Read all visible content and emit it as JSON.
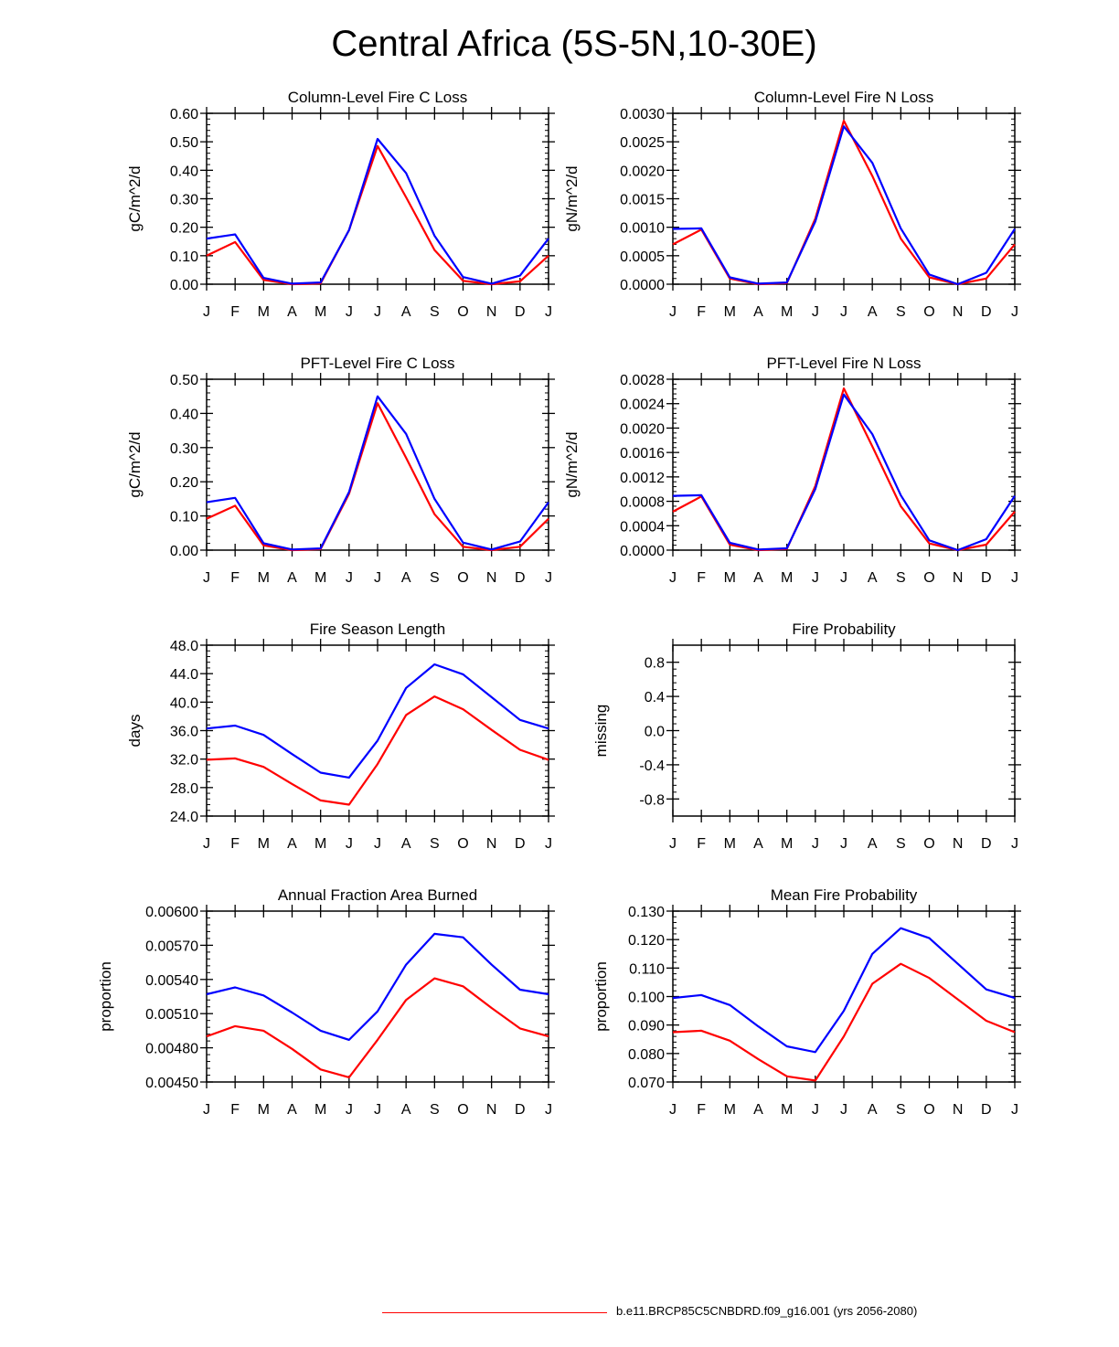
{
  "title": "Central Africa (5S-5N,10-30E)",
  "colors": {
    "series_red": "#ff0000",
    "series_blue": "#0000ff",
    "axis": "#000000"
  },
  "legend": {
    "label": "b.e11.BRCP85C5CNBDRD.f09_g16.001 (yrs 2056-2080)",
    "color": "#ff0000"
  },
  "chart_data": [
    {
      "type": "line",
      "title": "Column-Level Fire C Loss",
      "ylabel": "gC/m^2/d",
      "categories": [
        "J",
        "F",
        "M",
        "A",
        "M",
        "J",
        "J",
        "A",
        "S",
        "O",
        "N",
        "D",
        "J"
      ],
      "ylim": [
        0,
        0.6
      ],
      "yticks": [
        0,
        0.1,
        0.2,
        0.3,
        0.4,
        0.5,
        0.6
      ],
      "ytick_labels": [
        "0.00",
        "0.10",
        "0.20",
        "0.30",
        "0.40",
        "0.50",
        "0.60"
      ],
      "series": [
        {
          "name": "red",
          "color": "#ff0000",
          "values": [
            0.1,
            0.148,
            0.015,
            0.0,
            0.003,
            0.19,
            0.485,
            0.305,
            0.12,
            0.012,
            0.0,
            0.01,
            0.1
          ]
        },
        {
          "name": "blue",
          "color": "#0000ff",
          "values": [
            0.16,
            0.175,
            0.022,
            0.002,
            0.006,
            0.19,
            0.51,
            0.39,
            0.17,
            0.025,
            0.002,
            0.03,
            0.16
          ]
        }
      ]
    },
    {
      "type": "line",
      "title": "Column-Level Fire N Loss",
      "ylabel": "gN/m^2/d",
      "categories": [
        "J",
        "F",
        "M",
        "A",
        "M",
        "J",
        "J",
        "A",
        "S",
        "O",
        "N",
        "D",
        "J"
      ],
      "ylim": [
        0,
        0.003
      ],
      "yticks": [
        0,
        0.0005,
        0.001,
        0.0015,
        0.002,
        0.0025,
        0.003
      ],
      "ytick_labels": [
        "0.0000",
        "0.0005",
        "0.0010",
        "0.0015",
        "0.0020",
        "0.0025",
        "0.0030"
      ],
      "series": [
        {
          "name": "red",
          "color": "#ff0000",
          "values": [
            0.0007,
            0.00096,
            0.0001,
            0.0,
            2e-05,
            0.00115,
            0.00287,
            0.0019,
            0.0008,
            0.00012,
            0.0,
            0.0001,
            0.0007
          ]
        },
        {
          "name": "blue",
          "color": "#0000ff",
          "values": [
            0.00097,
            0.00098,
            0.00012,
            1e-05,
            3e-05,
            0.0011,
            0.00277,
            0.00213,
            0.00098,
            0.00017,
            0.0,
            0.0002,
            0.00097
          ]
        }
      ]
    },
    {
      "type": "line",
      "title": "PFT-Level Fire C Loss",
      "ylabel": "gC/m^2/d",
      "categories": [
        "J",
        "F",
        "M",
        "A",
        "M",
        "J",
        "J",
        "A",
        "S",
        "O",
        "N",
        "D",
        "J"
      ],
      "ylim": [
        0,
        0.5
      ],
      "yticks": [
        0,
        0.1,
        0.2,
        0.3,
        0.4,
        0.5
      ],
      "ytick_labels": [
        "0.00",
        "0.10",
        "0.20",
        "0.30",
        "0.40",
        "0.50"
      ],
      "series": [
        {
          "name": "red",
          "color": "#ff0000",
          "values": [
            0.092,
            0.13,
            0.014,
            0.0,
            0.003,
            0.165,
            0.43,
            0.27,
            0.105,
            0.01,
            0.0,
            0.01,
            0.092
          ]
        },
        {
          "name": "blue",
          "color": "#0000ff",
          "values": [
            0.14,
            0.153,
            0.02,
            0.002,
            0.005,
            0.17,
            0.45,
            0.34,
            0.15,
            0.022,
            0.002,
            0.025,
            0.14
          ]
        }
      ]
    },
    {
      "type": "line",
      "title": "PFT-Level Fire N Loss",
      "ylabel": "gN/m^2/d",
      "categories": [
        "J",
        "F",
        "M",
        "A",
        "M",
        "J",
        "J",
        "A",
        "S",
        "O",
        "N",
        "D",
        "J"
      ],
      "ylim": [
        0,
        0.0028
      ],
      "yticks": [
        0,
        0.0004,
        0.0008,
        0.0012,
        0.0016,
        0.002,
        0.0024,
        0.0028
      ],
      "ytick_labels": [
        "0.0000",
        "0.0004",
        "0.0008",
        "0.0012",
        "0.0016",
        "0.0020",
        "0.0024",
        "0.0028"
      ],
      "series": [
        {
          "name": "red",
          "color": "#ff0000",
          "values": [
            0.00063,
            0.00088,
            9e-05,
            0.0,
            2e-05,
            0.00105,
            0.00265,
            0.0017,
            0.00072,
            0.00011,
            0.0,
            9e-05,
            0.00063
          ]
        },
        {
          "name": "blue",
          "color": "#0000ff",
          "values": [
            0.00089,
            0.0009,
            0.00012,
            1e-05,
            3e-05,
            0.001,
            0.00255,
            0.0019,
            0.0009,
            0.00016,
            0.0,
            0.00018,
            0.00089
          ]
        }
      ]
    },
    {
      "type": "line",
      "title": "Fire Season Length",
      "ylabel": "days",
      "categories": [
        "J",
        "F",
        "M",
        "A",
        "M",
        "J",
        "J",
        "A",
        "S",
        "O",
        "N",
        "D",
        "J"
      ],
      "ylim": [
        24,
        48
      ],
      "yticks": [
        24,
        28,
        32,
        36,
        40,
        44,
        48
      ],
      "ytick_labels": [
        "24.0",
        "28.0",
        "32.0",
        "36.0",
        "40.0",
        "44.0",
        "48.0"
      ],
      "series": [
        {
          "name": "red",
          "color": "#ff0000",
          "values": [
            31.9,
            32.1,
            30.9,
            28.5,
            26.2,
            25.6,
            31.3,
            38.2,
            40.8,
            39.0,
            36.1,
            33.3,
            31.9
          ]
        },
        {
          "name": "blue",
          "color": "#0000ff",
          "values": [
            36.3,
            36.7,
            35.4,
            32.7,
            30.1,
            29.4,
            34.6,
            42.0,
            45.3,
            43.9,
            40.7,
            37.5,
            36.3
          ]
        }
      ]
    },
    {
      "type": "line",
      "title": "Fire Probability",
      "ylabel": "missing",
      "categories": [
        "J",
        "F",
        "M",
        "A",
        "M",
        "J",
        "J",
        "A",
        "S",
        "O",
        "N",
        "D",
        "J"
      ],
      "ylim": [
        -1,
        1
      ],
      "yticks": [
        -0.8,
        -0.4,
        0,
        0.4,
        0.8
      ],
      "ytick_labels": [
        "-0.8",
        "-0.4",
        "0.0",
        "0.4",
        "0.8"
      ],
      "series": []
    },
    {
      "type": "line",
      "title": "Annual Fraction Area Burned",
      "ylabel": "proportion",
      "categories": [
        "J",
        "F",
        "M",
        "A",
        "M",
        "J",
        "J",
        "A",
        "S",
        "O",
        "N",
        "D",
        "J"
      ],
      "ylim": [
        0.0045,
        0.006
      ],
      "yticks": [
        0.0045,
        0.0048,
        0.0051,
        0.0054,
        0.0057,
        0.006
      ],
      "ytick_labels": [
        "0.00450",
        "0.00480",
        "0.00510",
        "0.00540",
        "0.00570",
        "0.00600"
      ],
      "series": [
        {
          "name": "red",
          "color": "#ff0000",
          "values": [
            0.0049,
            0.00499,
            0.00495,
            0.00479,
            0.00461,
            0.00454,
            0.00487,
            0.00522,
            0.00541,
            0.00534,
            0.00515,
            0.00497,
            0.0049
          ]
        },
        {
          "name": "blue",
          "color": "#0000ff",
          "values": [
            0.00527,
            0.00533,
            0.00526,
            0.00511,
            0.00495,
            0.00487,
            0.00512,
            0.00553,
            0.0058,
            0.00577,
            0.00553,
            0.00531,
            0.00527
          ]
        }
      ]
    },
    {
      "type": "line",
      "title": "Mean Fire Probability",
      "ylabel": "proportion",
      "categories": [
        "J",
        "F",
        "M",
        "A",
        "M",
        "J",
        "J",
        "A",
        "S",
        "O",
        "N",
        "D",
        "J"
      ],
      "ylim": [
        0.07,
        0.13
      ],
      "yticks": [
        0.07,
        0.08,
        0.09,
        0.1,
        0.11,
        0.12,
        0.13
      ],
      "ytick_labels": [
        "0.070",
        "0.080",
        "0.090",
        "0.100",
        "0.110",
        "0.120",
        "0.130"
      ],
      "series": [
        {
          "name": "red",
          "color": "#ff0000",
          "values": [
            0.0875,
            0.088,
            0.0845,
            0.078,
            0.072,
            0.0705,
            0.086,
            0.1045,
            0.1115,
            0.1065,
            0.099,
            0.0915,
            0.0875
          ]
        },
        {
          "name": "blue",
          "color": "#0000ff",
          "values": [
            0.0995,
            0.1005,
            0.097,
            0.0895,
            0.0825,
            0.0805,
            0.095,
            0.115,
            0.124,
            0.1205,
            0.1115,
            0.1025,
            0.0995
          ]
        }
      ]
    }
  ]
}
